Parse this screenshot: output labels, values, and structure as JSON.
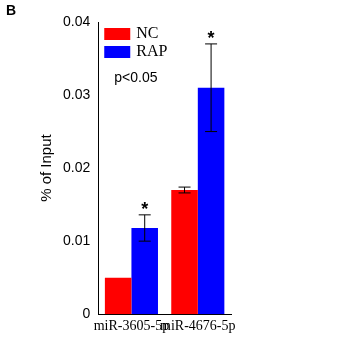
{
  "chart_data": {
    "type": "bar",
    "panel_label": "B",
    "y_label": "% of Input",
    "categories": [
      "miR-3605-5p",
      "miR-4676-5p"
    ],
    "series": [
      {
        "name": "NC",
        "color": "#ff0000",
        "values": [
          0.005,
          0.017
        ],
        "errors": [
          0.0,
          0.0004
        ]
      },
      {
        "name": "RAP",
        "color": "#0000ff",
        "values": [
          0.0118,
          0.031
        ],
        "errors": [
          0.0018,
          0.006
        ],
        "significance": [
          "*",
          "*"
        ]
      }
    ],
    "annotations": [
      "p<0.05"
    ],
    "ylim": [
      0,
      0.04
    ],
    "yticks": [
      0,
      0.01,
      0.02,
      0.03,
      0.04
    ],
    "grid": false,
    "legend": "top-left"
  }
}
